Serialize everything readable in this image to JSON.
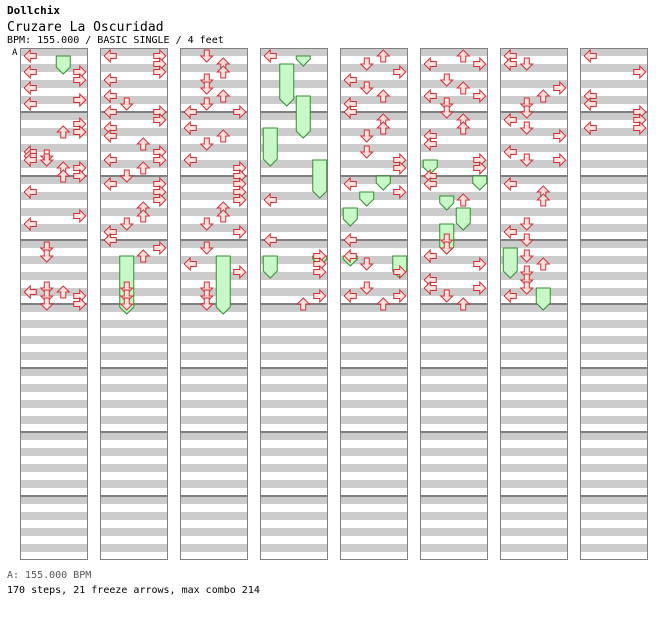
{
  "header": {
    "artist": "Dollchix",
    "title": "Cruzare La Oscuridad",
    "info": "BPM: 155.000 / BASIC SINGLE / 4 feet",
    "section_marker": "A"
  },
  "footer": {
    "bpm_line": "A: 155.000 BPM",
    "stats": "170 steps, 21 freeze arrows, max combo 214"
  },
  "chart_data": {
    "type": "step-chart",
    "columns": 8,
    "measures_per_column": 8,
    "lanes": [
      "left",
      "down",
      "up",
      "right"
    ],
    "colors": {
      "stripe": "#cccccc",
      "arrow_fill": "#ffe0e0",
      "arrow_stroke": "#d03030",
      "freeze_fill": "#c8f8c8",
      "freeze_stroke": "#309030",
      "frame": "#808080"
    },
    "notes": [
      [
        0,
        0.0,
        0
      ],
      [
        0,
        0.5,
        0
      ],
      [
        0,
        1.0,
        0
      ],
      [
        0,
        0.5,
        3
      ],
      [
        0,
        0.75,
        3
      ],
      [
        0,
        1.375,
        3
      ],
      [
        0,
        1.5,
        0
      ],
      [
        0,
        2.125,
        3
      ],
      [
        0,
        2.375,
        2
      ],
      [
        0,
        2.375,
        3
      ],
      [
        0,
        3.0,
        0
      ],
      [
        0,
        3.125,
        0
      ],
      [
        0,
        3.125,
        1
      ],
      [
        0,
        3.25,
        0
      ],
      [
        0,
        3.25,
        1
      ],
      [
        0,
        3.5,
        2
      ],
      [
        0,
        3.5,
        3
      ],
      [
        0,
        3.75,
        2
      ],
      [
        0,
        3.75,
        3
      ],
      [
        0,
        4.25,
        0
      ],
      [
        0,
        5.0,
        3
      ],
      [
        0,
        5.25,
        0
      ],
      [
        0,
        6.0,
        1
      ],
      [
        0,
        6.25,
        1
      ],
      [
        0,
        7.25,
        1
      ],
      [
        0,
        7.375,
        0
      ],
      [
        0,
        7.375,
        2
      ],
      [
        0,
        7.5,
        1
      ],
      [
        0,
        7.5,
        3
      ],
      [
        0,
        7.75,
        1
      ],
      [
        0,
        7.75,
        3
      ],
      [
        1,
        0.0,
        0
      ],
      [
        1,
        0.0,
        3
      ],
      [
        1,
        0.25,
        3
      ],
      [
        1,
        0.5,
        3
      ],
      [
        1,
        0.75,
        0
      ],
      [
        1,
        1.25,
        0
      ],
      [
        1,
        1.5,
        1
      ],
      [
        1,
        1.75,
        0
      ],
      [
        1,
        1.75,
        3
      ],
      [
        1,
        2.0,
        3
      ],
      [
        1,
        2.25,
        0
      ],
      [
        1,
        2.5,
        0
      ],
      [
        1,
        2.75,
        2
      ],
      [
        1,
        3.0,
        3
      ],
      [
        1,
        3.25,
        0
      ],
      [
        1,
        3.25,
        3
      ],
      [
        1,
        3.5,
        2
      ],
      [
        1,
        3.75,
        1
      ],
      [
        1,
        4.0,
        0
      ],
      [
        1,
        4.0,
        3
      ],
      [
        1,
        4.25,
        3
      ],
      [
        1,
        4.5,
        3
      ],
      [
        1,
        4.75,
        2
      ],
      [
        1,
        5.0,
        2
      ],
      [
        1,
        5.25,
        1
      ],
      [
        1,
        5.5,
        0
      ],
      [
        1,
        5.75,
        0
      ],
      [
        1,
        6.0,
        3
      ],
      [
        1,
        6.25,
        2
      ],
      [
        1,
        7.25,
        1
      ],
      [
        1,
        7.5,
        1
      ],
      [
        1,
        7.75,
        1
      ],
      [
        2,
        0.0,
        1
      ],
      [
        2,
        0.25,
        2
      ],
      [
        2,
        0.5,
        2
      ],
      [
        2,
        0.75,
        1
      ],
      [
        2,
        1.0,
        1
      ],
      [
        2,
        1.25,
        2
      ],
      [
        2,
        1.5,
        1
      ],
      [
        2,
        1.75,
        0
      ],
      [
        2,
        1.75,
        3
      ],
      [
        2,
        2.25,
        0
      ],
      [
        2,
        2.5,
        2
      ],
      [
        2,
        2.75,
        1
      ],
      [
        2,
        3.25,
        0
      ],
      [
        2,
        3.5,
        3
      ],
      [
        2,
        3.75,
        3
      ],
      [
        2,
        4.0,
        3
      ],
      [
        2,
        4.25,
        3
      ],
      [
        2,
        4.5,
        3
      ],
      [
        2,
        4.75,
        2
      ],
      [
        2,
        5.0,
        2
      ],
      [
        2,
        5.25,
        1
      ],
      [
        2,
        5.5,
        3
      ],
      [
        2,
        6.0,
        1
      ],
      [
        2,
        6.5,
        0
      ],
      [
        2,
        6.75,
        3
      ],
      [
        2,
        7.25,
        1
      ],
      [
        2,
        7.5,
        1
      ],
      [
        2,
        7.75,
        1
      ],
      [
        3,
        0.0,
        0
      ],
      [
        3,
        4.5,
        0
      ],
      [
        3,
        5.75,
        0
      ],
      [
        3,
        6.25,
        3
      ],
      [
        3,
        6.5,
        3
      ],
      [
        3,
        6.75,
        3
      ],
      [
        3,
        7.5,
        3
      ],
      [
        3,
        7.75,
        2
      ],
      [
        4,
        0.0,
        2
      ],
      [
        4,
        0.25,
        1
      ],
      [
        4,
        0.5,
        3
      ],
      [
        4,
        0.75,
        0
      ],
      [
        4,
        1.0,
        1
      ],
      [
        4,
        1.25,
        2
      ],
      [
        4,
        1.5,
        0
      ],
      [
        4,
        1.75,
        0
      ],
      [
        4,
        2.0,
        2
      ],
      [
        4,
        2.25,
        2
      ],
      [
        4,
        2.5,
        1
      ],
      [
        4,
        3.0,
        1
      ],
      [
        4,
        3.25,
        3
      ],
      [
        4,
        3.5,
        3
      ],
      [
        4,
        4.0,
        0
      ],
      [
        4,
        4.25,
        3
      ],
      [
        4,
        5.75,
        0
      ],
      [
        4,
        6.25,
        0
      ],
      [
        4,
        6.5,
        1
      ],
      [
        4,
        6.75,
        3
      ],
      [
        4,
        7.25,
        1
      ],
      [
        4,
        7.5,
        0
      ],
      [
        4,
        7.5,
        3
      ],
      [
        4,
        7.75,
        2
      ],
      [
        5,
        0.0,
        2
      ],
      [
        5,
        0.25,
        0
      ],
      [
        5,
        0.25,
        3
      ],
      [
        5,
        0.75,
        1
      ],
      [
        5,
        1.0,
        2
      ],
      [
        5,
        1.25,
        0
      ],
      [
        5,
        1.25,
        3
      ],
      [
        5,
        1.5,
        1
      ],
      [
        5,
        1.75,
        1
      ],
      [
        5,
        2.0,
        2
      ],
      [
        5,
        2.25,
        2
      ],
      [
        5,
        2.5,
        0
      ],
      [
        5,
        2.75,
        0
      ],
      [
        5,
        3.25,
        3
      ],
      [
        5,
        3.5,
        3
      ],
      [
        5,
        3.75,
        0
      ],
      [
        5,
        4.0,
        0
      ],
      [
        5,
        4.5,
        2
      ],
      [
        5,
        5.75,
        1
      ],
      [
        5,
        6.0,
        1
      ],
      [
        5,
        6.25,
        0
      ],
      [
        5,
        6.5,
        3
      ],
      [
        5,
        7.0,
        0
      ],
      [
        5,
        7.25,
        0
      ],
      [
        5,
        7.25,
        3
      ],
      [
        5,
        7.5,
        1
      ],
      [
        5,
        7.75,
        2
      ],
      [
        6,
        0.0,
        0
      ],
      [
        6,
        0.25,
        0
      ],
      [
        6,
        0.25,
        1
      ],
      [
        6,
        1.0,
        3
      ],
      [
        6,
        1.25,
        2
      ],
      [
        6,
        1.5,
        1
      ],
      [
        6,
        1.75,
        1
      ],
      [
        6,
        2.0,
        0
      ],
      [
        6,
        2.25,
        1
      ],
      [
        6,
        2.5,
        3
      ],
      [
        6,
        3.0,
        0
      ],
      [
        6,
        3.25,
        1
      ],
      [
        6,
        3.25,
        3
      ],
      [
        6,
        4.0,
        0
      ],
      [
        6,
        4.25,
        2
      ],
      [
        6,
        4.5,
        2
      ],
      [
        6,
        5.25,
        1
      ],
      [
        6,
        5.5,
        0
      ],
      [
        6,
        5.75,
        1
      ],
      [
        6,
        6.25,
        1
      ],
      [
        6,
        6.5,
        2
      ],
      [
        6,
        6.75,
        1
      ],
      [
        6,
        7.0,
        1
      ],
      [
        6,
        7.25,
        1
      ],
      [
        6,
        7.5,
        0
      ],
      [
        7,
        0.0,
        0
      ],
      [
        7,
        0.5,
        3
      ],
      [
        7,
        1.25,
        0
      ],
      [
        7,
        1.5,
        0
      ],
      [
        7,
        1.75,
        3
      ],
      [
        7,
        2.0,
        3
      ],
      [
        7,
        2.25,
        0
      ],
      [
        7,
        2.25,
        3
      ]
    ],
    "freezes": [
      [
        0,
        0.0,
        0.5,
        2
      ],
      [
        1,
        6.25,
        8.0,
        1
      ],
      [
        2,
        6.25,
        8.0,
        2
      ],
      [
        3,
        0.0,
        0.25,
        2
      ],
      [
        3,
        0.25,
        1.5,
        1
      ],
      [
        3,
        1.25,
        2.5,
        2
      ],
      [
        3,
        2.25,
        3.375,
        0
      ],
      [
        3,
        3.25,
        4.375,
        3
      ],
      [
        3,
        6.25,
        6.875,
        0
      ],
      [
        3,
        6.25,
        6.5,
        3
      ],
      [
        4,
        3.75,
        4.125,
        2
      ],
      [
        4,
        4.25,
        4.625,
        1
      ],
      [
        4,
        4.75,
        5.25,
        0
      ],
      [
        4,
        6.25,
        6.5,
        0
      ],
      [
        4,
        6.25,
        6.875,
        3
      ],
      [
        5,
        3.25,
        3.625,
        0
      ],
      [
        5,
        3.75,
        4.125,
        3
      ],
      [
        5,
        4.375,
        4.75,
        1
      ],
      [
        5,
        4.75,
        5.375,
        2
      ],
      [
        5,
        5.25,
        6.125,
        1
      ],
      [
        6,
        6.0,
        6.875,
        0
      ],
      [
        6,
        7.25,
        7.875,
        2
      ]
    ]
  }
}
